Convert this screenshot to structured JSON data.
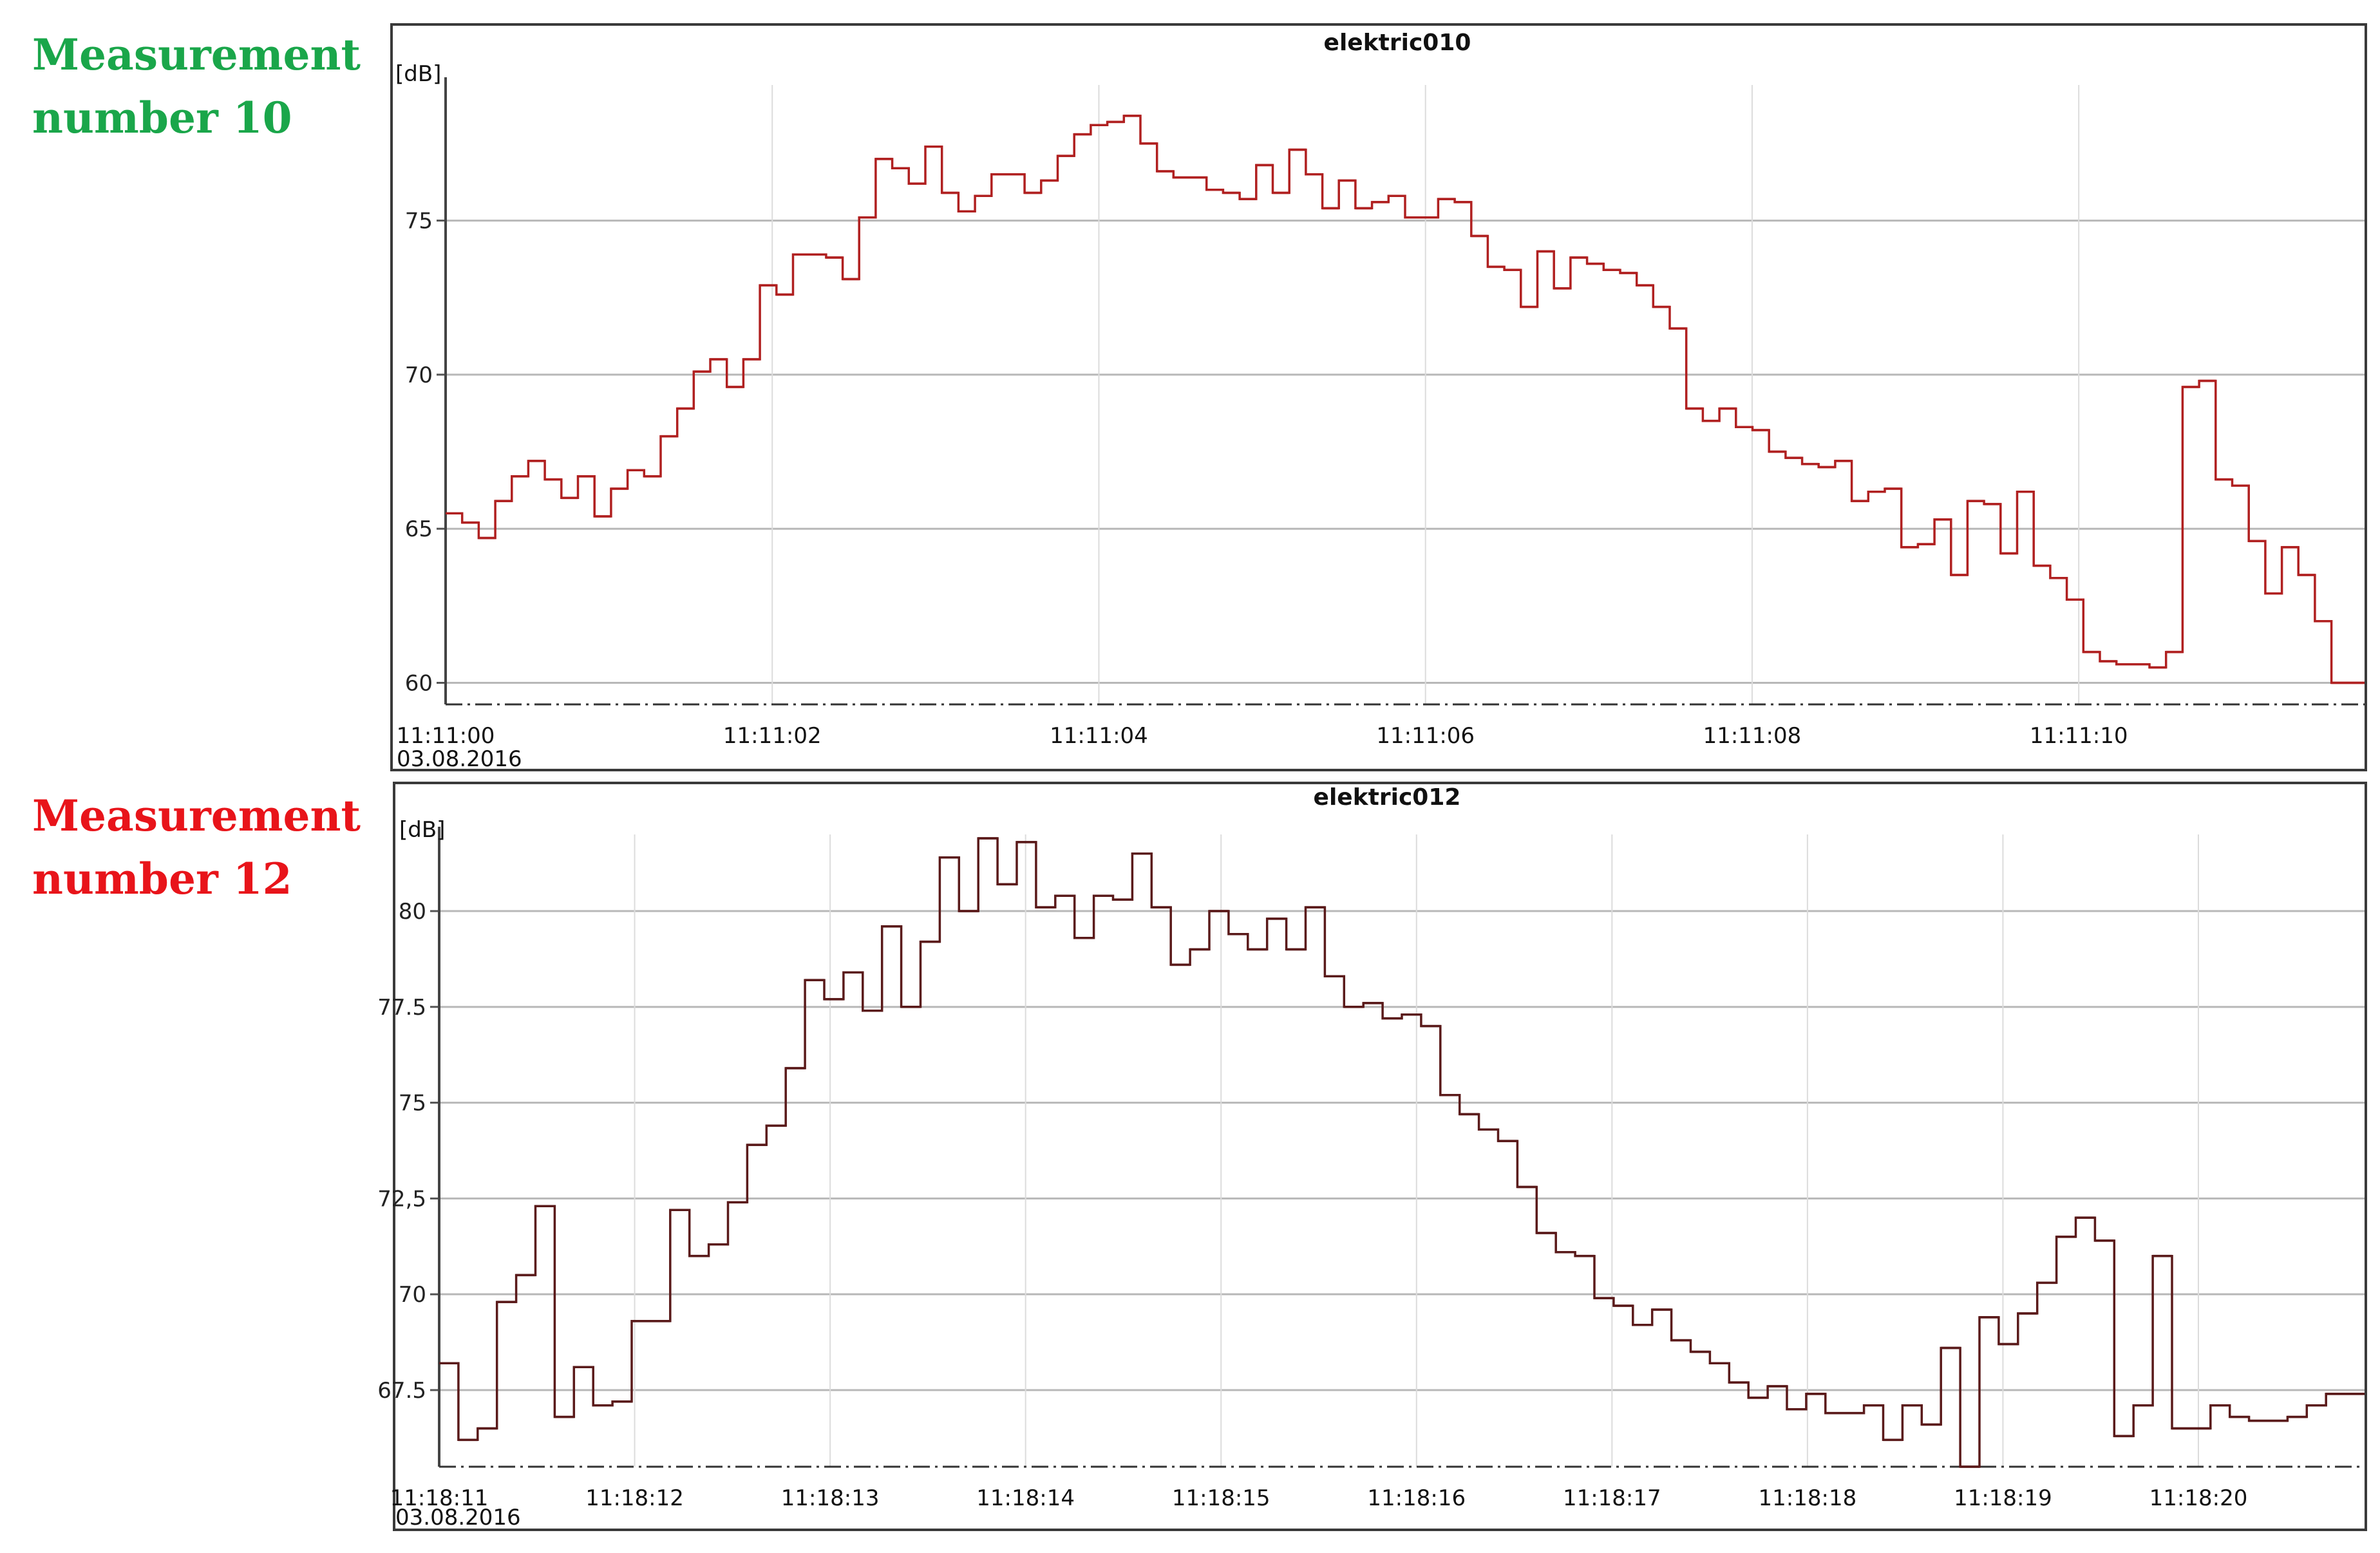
{
  "labels": {
    "chart10": "Measurement\nnumber 10",
    "chart12": "Measurement\nnumber 12"
  },
  "colors": {
    "label10": "#1aa64a",
    "label12": "#e8141a",
    "series10": "#b02020",
    "series12": "#5a1a1a",
    "grid": "#b8b8b8"
  },
  "chart_data": [
    {
      "type": "line",
      "step": true,
      "title": "elektric010",
      "ylabel": "[dB]",
      "date_label": "03.08.2016",
      "xlim": [
        0,
        11.75
      ],
      "ylim": [
        59.3,
        79.4
      ],
      "yticks": [
        60,
        65,
        70,
        75
      ],
      "ytick_labels": [
        "60",
        "65",
        "70",
        "75"
      ],
      "xticks": [
        0,
        2,
        4,
        6,
        8,
        10
      ],
      "xtick_labels": [
        "11:11:00",
        "11:11:02",
        "11:11:04",
        "11:11:06",
        "11:11:08",
        "11:11:10"
      ],
      "grid": true,
      "values": [
        65.5,
        65.2,
        64.7,
        65.9,
        66.7,
        67.2,
        66.6,
        66.0,
        66.7,
        65.4,
        66.3,
        66.9,
        66.7,
        68.0,
        68.9,
        70.1,
        70.5,
        69.6,
        70.5,
        72.9,
        72.6,
        73.9,
        73.9,
        73.8,
        73.1,
        75.1,
        77.0,
        76.7,
        76.2,
        77.4,
        75.9,
        75.3,
        75.8,
        76.5,
        76.5,
        75.9,
        76.3,
        77.1,
        77.8,
        78.1,
        78.2,
        78.4,
        77.5,
        76.6,
        76.4,
        76.4,
        76.0,
        75.9,
        75.7,
        76.8,
        75.9,
        77.3,
        76.5,
        75.4,
        76.3,
        75.4,
        75.6,
        75.8,
        75.1,
        75.1,
        75.7,
        75.6,
        74.5,
        73.5,
        73.4,
        72.2,
        74.0,
        72.8,
        73.8,
        73.6,
        73.4,
        73.3,
        72.9,
        72.2,
        71.5,
        68.9,
        68.5,
        68.9,
        68.3,
        68.2,
        67.5,
        67.3,
        67.1,
        67.0,
        67.2,
        65.9,
        66.2,
        66.3,
        64.4,
        64.5,
        65.3,
        63.5,
        65.9,
        65.8,
        64.2,
        66.2,
        63.8,
        63.4,
        62.7,
        61.0,
        60.7,
        60.6,
        60.6,
        60.5,
        61.0,
        69.6,
        69.8,
        66.6,
        66.4,
        64.6,
        62.9,
        64.4,
        63.5,
        62.0,
        60.0,
        60.0
      ]
    },
    {
      "type": "line",
      "step": true,
      "title": "elektric012",
      "ylabel": "[dB]",
      "date_label": "03.08.2016",
      "xlim": [
        0,
        9.85
      ],
      "ylim": [
        65.5,
        82.0
      ],
      "yticks": [
        67.5,
        70,
        72.5,
        75,
        77.5,
        80
      ],
      "ytick_labels": [
        "67.5",
        "70",
        "72,5",
        "75",
        "77.5",
        "80"
      ],
      "xticks": [
        0,
        1,
        2,
        3,
        4,
        5,
        6,
        7,
        8,
        9
      ],
      "xtick_labels": [
        "11:18:11",
        "11:18:12",
        "11:18:13",
        "11:18:14",
        "11:18:15",
        "11:18:16",
        "11:18:17",
        "11:18:18",
        "11:18:19",
        "11:18:20"
      ],
      "grid": true,
      "values": [
        68.2,
        66.2,
        66.5,
        69.8,
        70.5,
        72.3,
        66.8,
        68.1,
        67.1,
        67.2,
        69.3,
        69.3,
        72.2,
        71.0,
        71.3,
        72.4,
        73.9,
        74.4,
        75.9,
        78.2,
        77.7,
        78.4,
        77.4,
        79.6,
        77.5,
        79.2,
        81.4,
        80.0,
        81.9,
        80.7,
        81.8,
        80.1,
        80.4,
        79.3,
        80.4,
        80.3,
        81.5,
        80.1,
        78.6,
        79.0,
        80.0,
        79.4,
        79.0,
        79.8,
        79.0,
        80.1,
        78.3,
        77.5,
        77.6,
        77.2,
        77.3,
        77.0,
        75.2,
        74.7,
        74.3,
        74.0,
        72.8,
        71.6,
        71.1,
        71.0,
        69.9,
        69.7,
        69.2,
        69.6,
        68.8,
        68.5,
        68.2,
        67.7,
        67.3,
        67.6,
        67.0,
        67.4,
        66.9,
        66.9,
        67.1,
        66.2,
        67.1,
        66.6,
        68.6,
        65.5,
        69.4,
        68.7,
        69.5,
        70.3,
        71.5,
        72.0,
        71.4,
        66.3,
        67.1,
        71.0,
        66.5,
        66.5,
        67.1,
        66.8,
        66.7,
        66.7,
        66.8,
        67.1,
        67.4,
        67.4
      ]
    }
  ]
}
